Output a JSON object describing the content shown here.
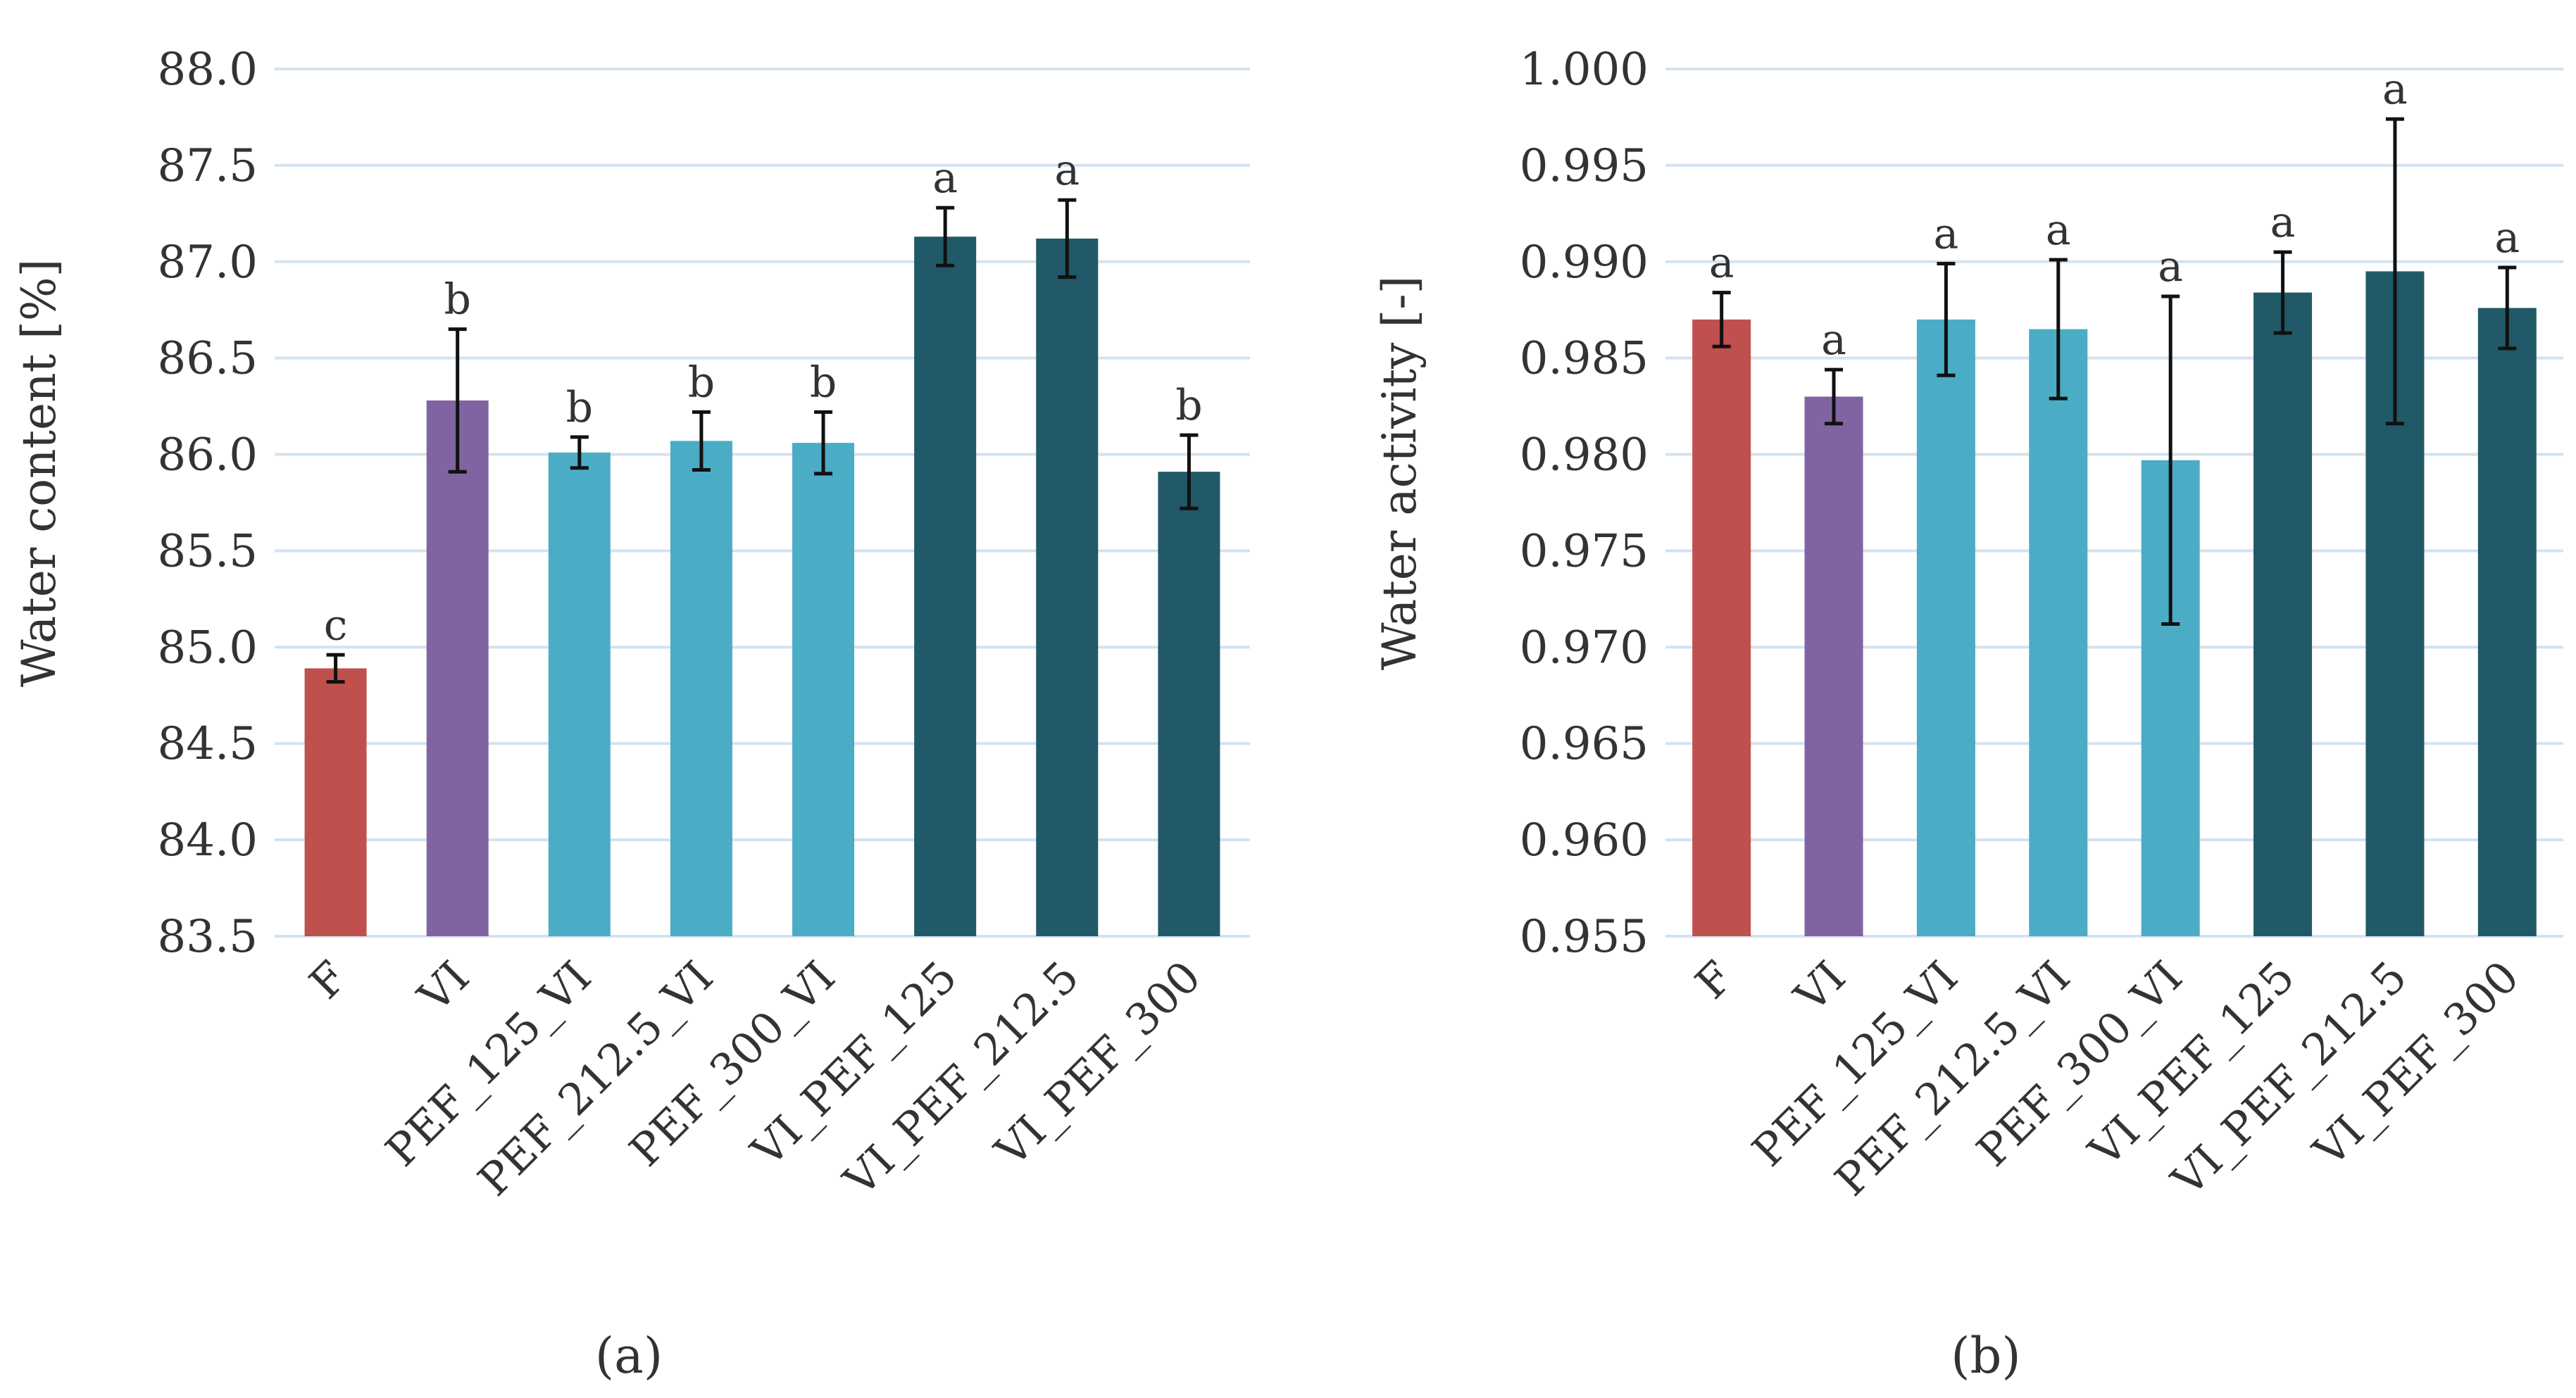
{
  "chart_data": [
    {
      "type": "bar",
      "panel_label": "(a)",
      "title": "",
      "xlabel": "",
      "ylabel": "Water content [%]",
      "ylim": [
        83.5,
        88.0
      ],
      "yticks": [
        "83.5",
        "84.0",
        "84.5",
        "85.0",
        "85.5",
        "86.0",
        "86.5",
        "87.0",
        "87.5",
        "88.0"
      ],
      "grid": true,
      "categories": [
        "F",
        "VI",
        "PEF_125_VI",
        "PEF_212.5_VI",
        "PEF_300_VI",
        "VI_PEF_125",
        "VI_PEF_212.5",
        "VI_PEF_300"
      ],
      "values": [
        84.89,
        86.28,
        86.01,
        86.07,
        86.06,
        87.13,
        87.12,
        85.91
      ],
      "errors": [
        0.07,
        0.37,
        0.08,
        0.15,
        0.16,
        0.15,
        0.2,
        0.19
      ],
      "letters": [
        "c",
        "b",
        "b",
        "b",
        "b",
        "a",
        "a",
        "b"
      ],
      "colors": [
        "#c0504d",
        "#8064a2",
        "#4bacc6",
        "#4bacc6",
        "#4bacc6",
        "#215968",
        "#215968",
        "#215968"
      ]
    },
    {
      "type": "bar",
      "panel_label": "(b)",
      "title": "",
      "xlabel": "",
      "ylabel": "Water activity [-]",
      "ylim": [
        0.955,
        1.0
      ],
      "yticks": [
        "0.955",
        "0.960",
        "0.965",
        "0.970",
        "0.975",
        "0.980",
        "0.985",
        "0.990",
        "0.995",
        "1.000"
      ],
      "grid": true,
      "categories": [
        "F",
        "VI",
        "PEF_125_VI",
        "PEF_212.5_VI",
        "PEF_300_VI",
        "VI_PEF_125",
        "VI_PEF_212.5",
        "VI_PEF_300"
      ],
      "values": [
        0.987,
        0.983,
        0.987,
        0.9865,
        0.9797,
        0.9884,
        0.9895,
        0.9876
      ],
      "errors": [
        0.0014,
        0.0014,
        0.0029,
        0.0036,
        0.0085,
        0.0021,
        0.0079,
        0.0021
      ],
      "letters": [
        "a",
        "a",
        "a",
        "a",
        "a",
        "a",
        "a",
        "a"
      ],
      "colors": [
        "#c0504d",
        "#8064a2",
        "#4bacc6",
        "#4bacc6",
        "#4bacc6",
        "#215968",
        "#215968",
        "#215968"
      ]
    }
  ]
}
